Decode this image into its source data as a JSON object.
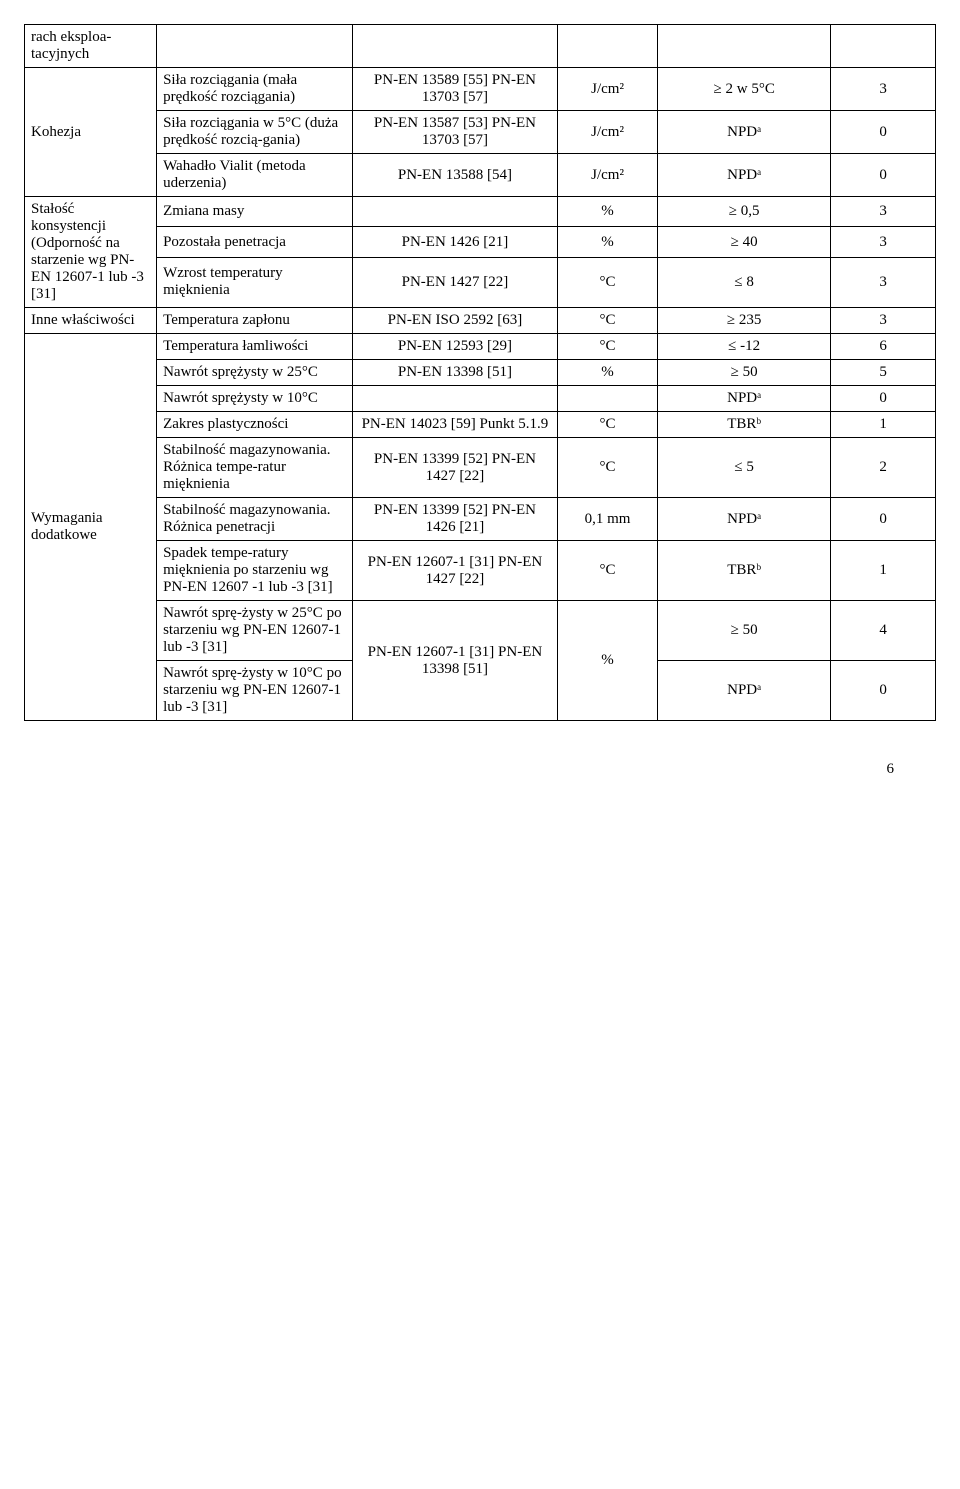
{
  "rows": [
    {
      "c1": "rach eksploa-tacyjnych",
      "c2": "",
      "c3": "",
      "c4": "",
      "c5": "",
      "c6": "",
      "c1_rowspan": 1
    },
    {
      "c1": "Kohezja",
      "c1_rowspan": 3,
      "c2": "Siła rozciągania (mała prędkość rozciągania)",
      "c3": "PN-EN 13589 [55] PN-EN 13703 [57]",
      "c4": "J/cm²",
      "c5": "≥ 2 w 5°C",
      "c6": "3"
    },
    {
      "c2": "Siła rozciągania w 5°C (duża prędkość rozcią-gania)",
      "c3": "PN-EN 13587 [53] PN-EN 13703 [57]",
      "c4": "J/cm²",
      "c5": "NPDᵃ",
      "c6": "0"
    },
    {
      "c2": "Wahadło Vialit (metoda uderzenia)",
      "c3": "PN-EN 13588 [54]",
      "c4": "J/cm²",
      "c5": "NPDᵃ",
      "c6": "0"
    },
    {
      "c1": "Stałość konsystencji (Odporność na starzenie wg PN-EN 12607-1 lub -3 [31]",
      "c1_rowspan": 3,
      "c2": "Zmiana masy",
      "c3": "",
      "c4": "%",
      "c5": "≥ 0,5",
      "c6": "3"
    },
    {
      "c2": "Pozostała penetracja",
      "c3": "PN-EN 1426 [21]",
      "c4": "%",
      "c5": "≥ 40",
      "c6": "3"
    },
    {
      "c2": "Wzrost temperatury mięknienia",
      "c3": "PN-EN 1427 [22]",
      "c4": "°C",
      "c5": "≤ 8",
      "c6": "3"
    },
    {
      "c1": "Inne właściwości",
      "c1_rowspan": 1,
      "c2": "Temperatura zapłonu",
      "c3": "PN-EN ISO 2592 [63]",
      "c4": "°C",
      "c5": "≥ 235",
      "c6": "3"
    },
    {
      "c1": "Wymagania dodatkowe",
      "c1_rowspan": 9,
      "c2": "Temperatura łamliwości",
      "c3": "PN-EN 12593 [29]",
      "c4": "°C",
      "c5": "≤ -12",
      "c6": "6"
    },
    {
      "c2": "Nawrót sprężysty w 25°C",
      "c3": "PN-EN 13398 [51]",
      "c4": "%",
      "c5": "≥ 50",
      "c6": "5"
    },
    {
      "c2": "Nawrót sprężysty w 10°C",
      "c3": "",
      "c4": "",
      "c5": "NPDᵃ",
      "c6": "0"
    },
    {
      "c2": "Zakres plastyczności",
      "c3": "PN-EN 14023 [59] Punkt 5.1.9",
      "c4": "°C",
      "c5": "TBRᵇ",
      "c6": "1"
    },
    {
      "c2": "Stabilność magazynowania. Różnica tempe-ratur mięknienia",
      "c3": "PN-EN 13399 [52] PN-EN 1427 [22]",
      "c4": "°C",
      "c5": "≤ 5",
      "c6": "2"
    },
    {
      "c2": "Stabilność magazynowania. Różnica penetracji",
      "c3": "PN-EN 13399 [52] PN-EN 1426 [21]",
      "c4": "0,1 mm",
      "c5": "NPDᵃ",
      "c6": "0"
    },
    {
      "c2": "Spadek tempe-ratury mięknienia po starzeniu wg PN-EN 12607 -1 lub -3 [31]",
      "c3": "PN-EN 12607-1 [31] PN-EN 1427 [22]",
      "c4": "°C",
      "c5": "TBRᵇ",
      "c6": "1"
    },
    {
      "c2": "Nawrót sprę-żysty w 25°C po starzeniu wg PN-EN 12607-1 lub -3 [31]",
      "c3": "PN-EN 12607-1 [31] PN-EN 13398 [51]",
      "c3_rowspan": 2,
      "c4": "%",
      "c4_rowspan": 2,
      "c5": "≥ 50",
      "c6": "4"
    },
    {
      "c2": "Nawrót sprę-żysty w 10°C po starzeniu wg PN-EN 12607-1 lub -3 [31]",
      "c5": "NPDᵃ",
      "c6": "0"
    }
  ],
  "page_number": "6",
  "table_style": {
    "border_color": "#000000",
    "background_color": "#ffffff",
    "font_family": "Times New Roman",
    "font_size_pt": 12,
    "col_widths_percent": [
      14.5,
      21.5,
      22.5,
      11,
      19,
      11.5
    ],
    "col_align": [
      "left",
      "left",
      "center",
      "center",
      "center",
      "center"
    ]
  }
}
